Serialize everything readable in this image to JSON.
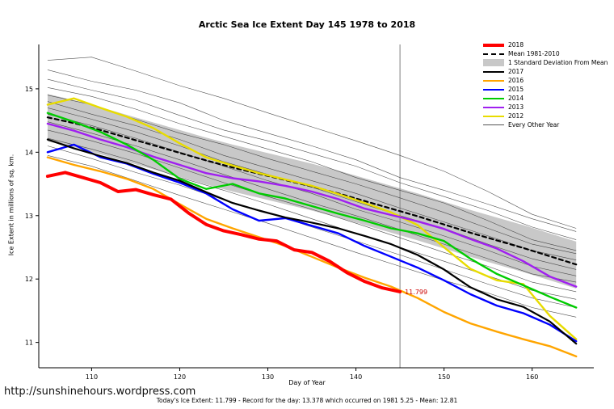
{
  "title": "Arctic Sea Ice Extent Day 145 1978 to 2018",
  "footer": {
    "url": "http://sunshinehours.wordpress.com",
    "summary": "Today's Ice Extent: 11.799  - Record for the day: 13.378 which occurred on 1981 5.25  - Mean: 12.81"
  },
  "chart_data": {
    "type": "line",
    "title": "Arctic Sea Ice Extent Day 145 1978 to 2018",
    "xlabel": "Day of Year",
    "ylabel": "Ice Extent in millions of sq. km.",
    "xlim": [
      104,
      167
    ],
    "ylim": [
      10.6,
      15.7
    ],
    "xticks": [
      110,
      120,
      130,
      140,
      150,
      160
    ],
    "yticks": [
      11,
      12,
      13,
      14,
      15
    ],
    "grid": false,
    "legend_position": "top-right",
    "vline": {
      "x": 145,
      "color": "#808080"
    },
    "annotation": {
      "x": 145,
      "y": 11.799,
      "text": "11.799",
      "color": "#cc0000"
    },
    "x": [
      105,
      108,
      111,
      114,
      117,
      120,
      123,
      126,
      129,
      132,
      135,
      138,
      141,
      144,
      147,
      150,
      153,
      156,
      159,
      162,
      165
    ],
    "band": {
      "name": "1 Standard Deviation From Mean",
      "color": "#c8c8c8",
      "upper": [
        14.92,
        14.82,
        14.71,
        14.59,
        14.47,
        14.35,
        14.23,
        14.12,
        14.02,
        13.92,
        13.82,
        13.71,
        13.59,
        13.47,
        13.35,
        13.22,
        13.09,
        12.97,
        12.85,
        12.72,
        12.59
      ],
      "lower": [
        14.17,
        14.08,
        13.97,
        13.85,
        13.73,
        13.61,
        13.49,
        13.38,
        13.28,
        13.18,
        13.08,
        12.97,
        12.85,
        12.73,
        12.61,
        12.48,
        12.35,
        12.23,
        12.11,
        11.98,
        11.85
      ]
    },
    "series": [
      {
        "name": "Mean 1981-2010",
        "color": "#000000",
        "width": 2.2,
        "dash": "5,4",
        "y": [
          14.55,
          14.46,
          14.35,
          14.23,
          14.11,
          13.99,
          13.87,
          13.76,
          13.66,
          13.56,
          13.46,
          13.35,
          13.23,
          13.11,
          12.99,
          12.86,
          12.73,
          12.61,
          12.49,
          12.36,
          12.23
        ]
      },
      {
        "name": "2012",
        "color": "#e8dc00",
        "width": 2.4,
        "y": [
          14.75,
          14.85,
          14.7,
          14.56,
          14.38,
          14.14,
          13.92,
          13.79,
          13.67,
          13.57,
          13.47,
          13.34,
          13.2,
          13.05,
          12.85,
          12.5,
          12.16,
          11.98,
          11.92,
          11.42,
          11.05
        ]
      },
      {
        "name": "2013",
        "color": "#a020f0",
        "width": 2.4,
        "y": [
          14.45,
          14.34,
          14.2,
          14.08,
          13.93,
          13.8,
          13.67,
          13.59,
          13.54,
          13.47,
          13.38,
          13.26,
          13.11,
          13.01,
          12.91,
          12.79,
          12.63,
          12.48,
          12.28,
          12.04,
          11.88
        ]
      },
      {
        "name": "2014",
        "color": "#00cc00",
        "width": 2.4,
        "y": [
          14.62,
          14.48,
          14.32,
          14.12,
          13.88,
          13.58,
          13.42,
          13.5,
          13.35,
          13.27,
          13.15,
          13.03,
          12.92,
          12.8,
          12.72,
          12.6,
          12.32,
          12.08,
          11.9,
          11.72,
          11.55
        ]
      },
      {
        "name": "2015",
        "color": "#0000ff",
        "width": 2.4,
        "y": [
          14.0,
          14.12,
          13.92,
          13.82,
          13.66,
          13.52,
          13.35,
          13.1,
          12.92,
          12.96,
          12.84,
          12.72,
          12.52,
          12.35,
          12.18,
          11.98,
          11.76,
          11.58,
          11.46,
          11.28,
          11.02
        ]
      },
      {
        "name": "2016",
        "color": "#ffa500",
        "width": 2.4,
        "y": [
          13.92,
          13.8,
          13.7,
          13.58,
          13.42,
          13.18,
          12.95,
          12.8,
          12.66,
          12.52,
          12.35,
          12.18,
          12.02,
          11.88,
          11.7,
          11.48,
          11.3,
          11.17,
          11.05,
          10.94,
          10.78
        ]
      },
      {
        "name": "2017",
        "color": "#000000",
        "width": 2.2,
        "y": [
          14.2,
          14.06,
          13.94,
          13.83,
          13.68,
          13.55,
          13.37,
          13.2,
          13.08,
          12.97,
          12.89,
          12.8,
          12.68,
          12.55,
          12.38,
          12.15,
          11.87,
          11.68,
          11.56,
          11.33,
          10.98
        ]
      },
      {
        "name": "2018",
        "color": "#ff0000",
        "width": 4,
        "x": [
          105,
          107,
          109,
          111,
          113,
          115,
          117,
          119,
          121,
          123,
          125,
          127,
          129,
          131,
          133,
          135,
          137,
          139,
          141,
          143,
          145
        ],
        "y": [
          13.62,
          13.68,
          13.6,
          13.52,
          13.38,
          13.41,
          13.33,
          13.26,
          13.04,
          12.86,
          12.76,
          12.7,
          12.63,
          12.6,
          12.46,
          12.42,
          12.28,
          12.1,
          11.96,
          11.86,
          11.8
        ]
      }
    ],
    "every_other_year": {
      "name": "Every Other Year",
      "color": "#3c3c3c",
      "width": 0.6,
      "x": [
        105,
        110,
        115,
        120,
        125,
        130,
        135,
        140,
        145,
        150,
        155,
        160,
        165
      ],
      "lines": [
        [
          15.45,
          15.5,
          15.28,
          15.05,
          14.85,
          14.62,
          14.4,
          14.18,
          13.95,
          13.7,
          13.38,
          13.02,
          12.8
        ],
        [
          15.3,
          15.12,
          14.98,
          14.78,
          14.5,
          14.3,
          14.1,
          13.88,
          13.6,
          13.4,
          13.18,
          12.95,
          12.75
        ],
        [
          15.15,
          14.98,
          14.82,
          14.58,
          14.35,
          14.18,
          13.98,
          13.78,
          13.52,
          13.3,
          13.08,
          12.82,
          12.62
        ],
        [
          15.02,
          14.88,
          14.68,
          14.45,
          14.25,
          14.05,
          13.85,
          13.6,
          13.4,
          13.2,
          12.92,
          12.62,
          12.45
        ],
        [
          14.9,
          14.75,
          14.52,
          14.3,
          14.12,
          13.9,
          13.7,
          13.5,
          13.28,
          13.05,
          12.8,
          12.55,
          12.4
        ],
        [
          14.8,
          14.6,
          14.42,
          14.2,
          13.95,
          13.75,
          13.55,
          13.35,
          13.12,
          12.9,
          12.68,
          12.45,
          12.3
        ],
        [
          14.7,
          14.52,
          14.32,
          14.1,
          13.85,
          13.65,
          13.45,
          13.22,
          13.0,
          12.8,
          12.55,
          12.32,
          12.15
        ],
        [
          14.6,
          14.42,
          14.22,
          14.0,
          13.78,
          13.55,
          13.35,
          13.1,
          12.9,
          12.68,
          12.45,
          12.2,
          12.05
        ],
        [
          14.48,
          14.3,
          14.1,
          13.88,
          13.65,
          13.42,
          13.2,
          13.0,
          12.78,
          12.55,
          12.32,
          12.08,
          11.95
        ],
        [
          14.35,
          14.18,
          13.98,
          13.75,
          13.52,
          13.3,
          13.1,
          12.88,
          12.65,
          12.42,
          12.2,
          11.95,
          11.8
        ],
        [
          14.22,
          14.05,
          13.85,
          13.6,
          13.4,
          13.18,
          12.95,
          12.72,
          12.5,
          12.28,
          12.05,
          11.82,
          11.68
        ],
        [
          14.1,
          13.9,
          13.68,
          13.48,
          13.25,
          13.05,
          12.82,
          12.6,
          12.38,
          12.15,
          11.92,
          11.7,
          11.55
        ],
        [
          13.95,
          13.78,
          13.55,
          13.32,
          13.1,
          12.88,
          12.65,
          12.42,
          12.2,
          11.98,
          11.78,
          11.55,
          11.4
        ]
      ]
    },
    "legend": [
      {
        "label": "2018",
        "swatch": "line",
        "color": "#ff0000",
        "weight": 4
      },
      {
        "label": "Mean 1981-2010",
        "swatch": "dashed",
        "color": "#000000",
        "weight": 2
      },
      {
        "label": "1 Standard Deviation From Mean",
        "swatch": "box",
        "color": "#c8c8c8"
      },
      {
        "label": "2017",
        "swatch": "line",
        "color": "#000000",
        "weight": 2
      },
      {
        "label": "2016",
        "swatch": "line",
        "color": "#ffa500",
        "weight": 2
      },
      {
        "label": "2015",
        "swatch": "line",
        "color": "#0000ff",
        "weight": 2
      },
      {
        "label": "2014",
        "swatch": "line",
        "color": "#00cc00",
        "weight": 2
      },
      {
        "label": "2013",
        "swatch": "line",
        "color": "#a020f0",
        "weight": 2
      },
      {
        "label": "2012",
        "swatch": "line",
        "color": "#e8dc00",
        "weight": 2
      },
      {
        "label": "Every Other Year",
        "swatch": "line",
        "color": "#555555",
        "weight": 1
      }
    ]
  }
}
